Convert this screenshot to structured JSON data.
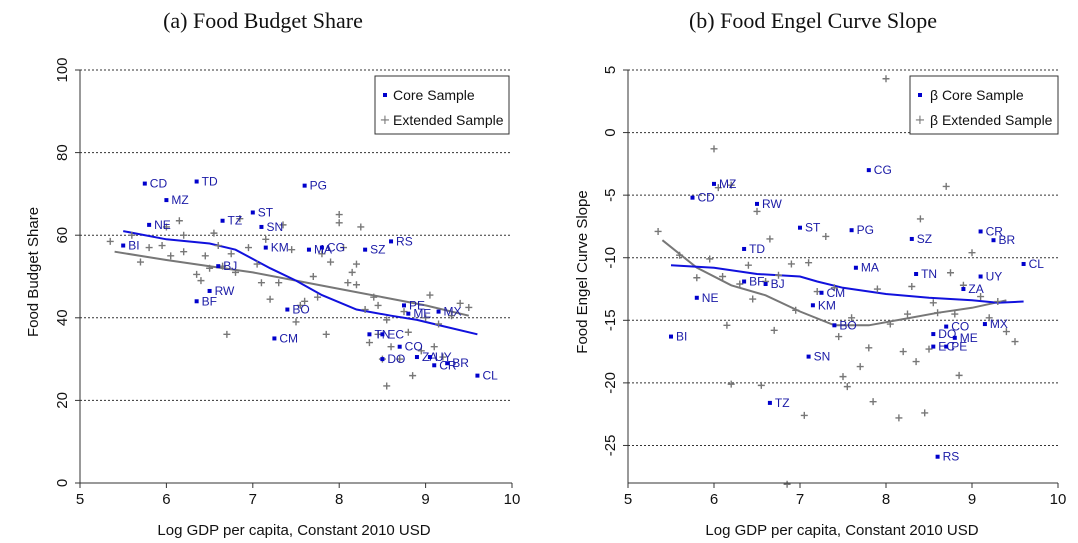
{
  "chart_data": [
    {
      "type": "scatter",
      "title": "(a) Food Budget Share",
      "xlabel": "Log GDP per capita, Constant 2010 USD",
      "ylabel": "Food Budget Share",
      "xlim": [
        5,
        10
      ],
      "ylim": [
        0,
        100
      ],
      "xticks": [
        5,
        6,
        7,
        8,
        9,
        10
      ],
      "yticks": [
        0,
        20,
        40,
        60,
        80,
        100
      ],
      "grid": "horizontal dotted",
      "legend": {
        "position": "top-right",
        "entries": [
          "Core Sample",
          "Extended Sample"
        ]
      },
      "colors": {
        "core": "#0000cc",
        "extended": "#777777",
        "core_fit": "#1111dd",
        "extended_fit": "#777777"
      },
      "core_points": [
        {
          "label": "BI",
          "x": 5.5,
          "y": 57.5
        },
        {
          "label": "CD",
          "x": 5.75,
          "y": 72.5
        },
        {
          "label": "NE",
          "x": 5.8,
          "y": 62.5
        },
        {
          "label": "MZ",
          "x": 6.0,
          "y": 68.5
        },
        {
          "label": "TD",
          "x": 6.35,
          "y": 73
        },
        {
          "label": "BF",
          "x": 6.35,
          "y": 44
        },
        {
          "label": "RW",
          "x": 6.5,
          "y": 46.5
        },
        {
          "label": "BJ",
          "x": 6.6,
          "y": 52.5
        },
        {
          "label": "TZ",
          "x": 6.65,
          "y": 63.5
        },
        {
          "label": "ST",
          "x": 7.0,
          "y": 65.5
        },
        {
          "label": "SN",
          "x": 7.1,
          "y": 62
        },
        {
          "label": "KM",
          "x": 7.15,
          "y": 57
        },
        {
          "label": "CM",
          "x": 7.25,
          "y": 35
        },
        {
          "label": "BO",
          "x": 7.4,
          "y": 42
        },
        {
          "label": "PG",
          "x": 7.6,
          "y": 72
        },
        {
          "label": "MA",
          "x": 7.65,
          "y": 56.5
        },
        {
          "label": "CG",
          "x": 7.8,
          "y": 57
        },
        {
          "label": "SZ",
          "x": 8.3,
          "y": 56.5
        },
        {
          "label": "RS",
          "x": 8.6,
          "y": 58.5
        },
        {
          "label": "TN",
          "x": 8.35,
          "y": 36
        },
        {
          "label": "EC",
          "x": 8.5,
          "y": 36
        },
        {
          "label": "DO",
          "x": 8.5,
          "y": 30
        },
        {
          "label": "CO",
          "x": 8.7,
          "y": 33
        },
        {
          "label": "PE",
          "x": 8.75,
          "y": 43
        },
        {
          "label": "ME",
          "x": 8.8,
          "y": 41
        },
        {
          "label": "ZA",
          "x": 8.9,
          "y": 30.5
        },
        {
          "label": "UY",
          "x": 9.05,
          "y": 30.5
        },
        {
          "label": "CR",
          "x": 9.1,
          "y": 28.5
        },
        {
          "label": "BR",
          "x": 9.25,
          "y": 29
        },
        {
          "label": "MX",
          "x": 9.15,
          "y": 41.5
        },
        {
          "label": "CL",
          "x": 9.6,
          "y": 26
        }
      ],
      "extended_points": [
        [
          5.35,
          58.5
        ],
        [
          5.6,
          60
        ],
        [
          5.7,
          53.5
        ],
        [
          5.8,
          57
        ],
        [
          5.95,
          57.5
        ],
        [
          6.0,
          62
        ],
        [
          6.05,
          55
        ],
        [
          6.15,
          63.5
        ],
        [
          6.2,
          60
        ],
        [
          6.2,
          56
        ],
        [
          6.35,
          50.5
        ],
        [
          6.4,
          49
        ],
        [
          6.45,
          55
        ],
        [
          6.5,
          52
        ],
        [
          6.55,
          60.5
        ],
        [
          6.6,
          57.5
        ],
        [
          6.65,
          52.5
        ],
        [
          6.7,
          36
        ],
        [
          6.75,
          55.5
        ],
        [
          6.8,
          51
        ],
        [
          6.85,
          64
        ],
        [
          6.95,
          57
        ],
        [
          7.05,
          53
        ],
        [
          7.1,
          48.5
        ],
        [
          7.15,
          59
        ],
        [
          7.2,
          44.5
        ],
        [
          7.3,
          48.5
        ],
        [
          7.35,
          62.5
        ],
        [
          7.45,
          56.5
        ],
        [
          7.5,
          39
        ],
        [
          7.55,
          43
        ],
        [
          7.6,
          44
        ],
        [
          7.7,
          50
        ],
        [
          7.75,
          45
        ],
        [
          7.8,
          55.5
        ],
        [
          7.85,
          36
        ],
        [
          7.9,
          53.5
        ],
        [
          8.0,
          65
        ],
        [
          8.0,
          63
        ],
        [
          8.05,
          57
        ],
        [
          8.1,
          48.5
        ],
        [
          8.15,
          51
        ],
        [
          8.2,
          53
        ],
        [
          8.2,
          48
        ],
        [
          8.25,
          62
        ],
        [
          8.3,
          42
        ],
        [
          8.35,
          34
        ],
        [
          8.4,
          45
        ],
        [
          8.45,
          36
        ],
        [
          8.45,
          43
        ],
        [
          8.5,
          30
        ],
        [
          8.55,
          39.5
        ],
        [
          8.55,
          23.5
        ],
        [
          8.6,
          33
        ],
        [
          8.7,
          30
        ],
        [
          8.75,
          41.5
        ],
        [
          8.8,
          36.5
        ],
        [
          8.85,
          26
        ],
        [
          8.95,
          32
        ],
        [
          9.0,
          40
        ],
        [
          9.05,
          45.5
        ],
        [
          9.1,
          33
        ],
        [
          9.15,
          38.5
        ],
        [
          9.2,
          30.5
        ],
        [
          9.3,
          40.5
        ],
        [
          9.4,
          43.5
        ],
        [
          9.5,
          42.5
        ]
      ],
      "core_fit": [
        [
          5.5,
          61
        ],
        [
          6.0,
          59
        ],
        [
          6.5,
          58
        ],
        [
          6.8,
          56.5
        ],
        [
          7.2,
          52
        ],
        [
          7.5,
          49
        ],
        [
          7.8,
          45.5
        ],
        [
          8.2,
          42
        ],
        [
          8.6,
          40.5
        ],
        [
          8.9,
          39.5
        ],
        [
          9.2,
          38
        ],
        [
          9.6,
          36
        ]
      ],
      "extended_fit": [
        [
          5.4,
          56
        ],
        [
          6.0,
          54
        ],
        [
          6.5,
          52.5
        ],
        [
          7.0,
          51
        ],
        [
          7.5,
          49
        ],
        [
          8.0,
          47
        ],
        [
          8.5,
          45
        ],
        [
          9.0,
          43
        ],
        [
          9.5,
          40.5
        ]
      ]
    },
    {
      "type": "scatter",
      "title": "(b) Food Engel Curve Slope",
      "xlabel": "Log GDP per capita, Constant 2010 USD",
      "ylabel": "Food Engel Curve Slope",
      "xlim": [
        5,
        10
      ],
      "ylim": [
        -28,
        5
      ],
      "xticks": [
        5,
        6,
        7,
        8,
        9,
        10
      ],
      "yticks": [
        -25,
        -20,
        -15,
        -10,
        -5,
        0,
        5
      ],
      "grid": "horizontal dotted",
      "legend": {
        "position": "top-right",
        "entries": [
          "β Core Sample",
          "β Extended Sample"
        ]
      },
      "colors": {
        "core": "#0000cc",
        "extended": "#777777",
        "core_fit": "#1111dd",
        "extended_fit": "#777777"
      },
      "core_points": [
        {
          "label": "BI",
          "x": 5.5,
          "y": -16.3
        },
        {
          "label": "NE",
          "x": 5.8,
          "y": -13.2
        },
        {
          "label": "CD",
          "x": 5.75,
          "y": -5.2
        },
        {
          "label": "MZ",
          "x": 6.0,
          "y": -4.1
        },
        {
          "label": "RW",
          "x": 6.5,
          "y": -5.7
        },
        {
          "label": "TD",
          "x": 6.35,
          "y": -9.3
        },
        {
          "label": "BF",
          "x": 6.35,
          "y": -11.9
        },
        {
          "label": "BJ",
          "x": 6.6,
          "y": -12.1
        },
        {
          "label": "TZ",
          "x": 6.65,
          "y": -21.6
        },
        {
          "label": "ST",
          "x": 7.0,
          "y": -7.6
        },
        {
          "label": "SN",
          "x": 7.1,
          "y": -17.9
        },
        {
          "label": "KM",
          "x": 7.15,
          "y": -13.8
        },
        {
          "label": "CM",
          "x": 7.25,
          "y": -12.8
        },
        {
          "label": "BO",
          "x": 7.4,
          "y": -15.4
        },
        {
          "label": "PG",
          "x": 7.6,
          "y": -7.8
        },
        {
          "label": "MA",
          "x": 7.65,
          "y": -10.8
        },
        {
          "label": "CG",
          "x": 7.8,
          "y": -3.0
        },
        {
          "label": "SZ",
          "x": 8.3,
          "y": -8.5
        },
        {
          "label": "TN",
          "x": 8.35,
          "y": -11.3
        },
        {
          "label": "RS",
          "x": 8.6,
          "y": -25.9
        },
        {
          "label": "DO",
          "x": 8.55,
          "y": -16.1
        },
        {
          "label": "CO",
          "x": 8.7,
          "y": -15.5
        },
        {
          "label": "EC",
          "x": 8.55,
          "y": -17.1
        },
        {
          "label": "PE",
          "x": 8.7,
          "y": -17.1
        },
        {
          "label": "ME",
          "x": 8.8,
          "y": -16.4
        },
        {
          "label": "ZA",
          "x": 8.9,
          "y": -12.5
        },
        {
          "label": "CR",
          "x": 9.1,
          "y": -7.9
        },
        {
          "label": "BR",
          "x": 9.25,
          "y": -8.6
        },
        {
          "label": "UY",
          "x": 9.1,
          "y": -11.5
        },
        {
          "label": "MX",
          "x": 9.15,
          "y": -15.3
        },
        {
          "label": "CL",
          "x": 9.6,
          "y": -10.5
        }
      ],
      "extended_points": [
        [
          5.35,
          -7.9
        ],
        [
          5.6,
          -9.8
        ],
        [
          5.8,
          -11.6
        ],
        [
          5.95,
          -10.1
        ],
        [
          6.0,
          -1.3
        ],
        [
          6.05,
          -4.4
        ],
        [
          6.1,
          -11.5
        ],
        [
          6.15,
          -15.4
        ],
        [
          6.2,
          -4.2
        ],
        [
          6.2,
          -20.1
        ],
        [
          6.3,
          -12.1
        ],
        [
          6.4,
          -10.6
        ],
        [
          6.45,
          -13.3
        ],
        [
          6.5,
          -6.3
        ],
        [
          6.55,
          -20.2
        ],
        [
          6.6,
          -11.9
        ],
        [
          6.65,
          -8.5
        ],
        [
          6.7,
          -15.8
        ],
        [
          6.75,
          -11.4
        ],
        [
          6.85,
          -28.1
        ],
        [
          6.9,
          -10.5
        ],
        [
          6.95,
          -14.2
        ],
        [
          7.05,
          -22.6
        ],
        [
          7.1,
          -10.4
        ],
        [
          7.2,
          -12.7
        ],
        [
          7.3,
          -8.3
        ],
        [
          7.4,
          -12.4
        ],
        [
          7.45,
          -16.3
        ],
        [
          7.5,
          -19.5
        ],
        [
          7.55,
          -20.3
        ],
        [
          7.6,
          -14.8
        ],
        [
          7.7,
          -18.7
        ],
        [
          7.8,
          -17.2
        ],
        [
          7.85,
          -21.5
        ],
        [
          7.9,
          -12.5
        ],
        [
          8.0,
          4.3
        ],
        [
          8.05,
          -15.3
        ],
        [
          8.15,
          -22.8
        ],
        [
          8.2,
          -17.5
        ],
        [
          8.25,
          -14.5
        ],
        [
          8.3,
          -12.3
        ],
        [
          8.35,
          -18.3
        ],
        [
          8.4,
          -6.9
        ],
        [
          8.45,
          -22.4
        ],
        [
          8.5,
          -17.3
        ],
        [
          8.55,
          -13.6
        ],
        [
          8.6,
          -14.4
        ],
        [
          8.7,
          -4.3
        ],
        [
          8.75,
          -11.2
        ],
        [
          8.8,
          -14.5
        ],
        [
          8.85,
          -19.4
        ],
        [
          8.9,
          -12.2
        ],
        [
          9.0,
          -9.6
        ],
        [
          9.1,
          -13.1
        ],
        [
          9.2,
          -14.8
        ],
        [
          9.3,
          -13.5
        ],
        [
          9.4,
          -15.9
        ],
        [
          9.5,
          -16.7
        ]
      ],
      "core_fit": [
        [
          5.5,
          -10.6
        ],
        [
          6.0,
          -10.8
        ],
        [
          6.5,
          -11.3
        ],
        [
          7.0,
          -11.5
        ],
        [
          7.2,
          -11.9
        ],
        [
          7.5,
          -12.4
        ],
        [
          8.0,
          -12.9
        ],
        [
          8.5,
          -13.2
        ],
        [
          9.0,
          -13.4
        ],
        [
          9.3,
          -13.6
        ],
        [
          9.6,
          -13.5
        ]
      ],
      "extended_fit": [
        [
          5.4,
          -8.6
        ],
        [
          5.8,
          -10.8
        ],
        [
          6.2,
          -12.2
        ],
        [
          6.6,
          -13.0
        ],
        [
          7.0,
          -14.3
        ],
        [
          7.4,
          -15.4
        ],
        [
          7.8,
          -15.4
        ],
        [
          8.2,
          -14.9
        ],
        [
          8.6,
          -14.4
        ],
        [
          9.0,
          -14.0
        ],
        [
          9.4,
          -13.4
        ]
      ]
    }
  ]
}
